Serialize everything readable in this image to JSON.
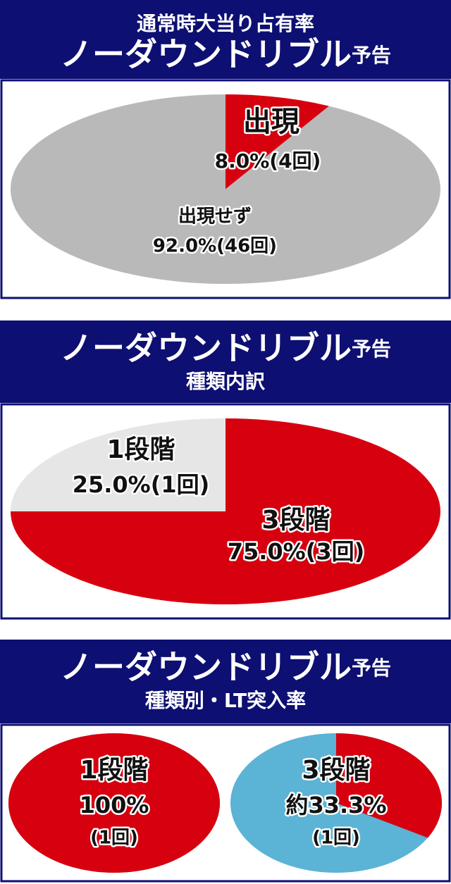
{
  "chart_data": [
    {
      "type": "pie",
      "subtitle": "通常時大当り占有率",
      "title": "ノーダウンドリブル",
      "title_suffix": "予告",
      "categories": [
        "出現",
        "出現せず"
      ],
      "values": [
        8.0,
        92.0
      ],
      "value_labels": [
        "8.0%(4回)",
        "92.0%(46回)"
      ],
      "colors": [
        "#d7000f",
        "#b9b9b9"
      ]
    },
    {
      "type": "pie",
      "title": "ノーダウンドリブル",
      "title_suffix": "予告",
      "subtitle": "種類内訳",
      "categories": [
        "3段階",
        "1段階"
      ],
      "values": [
        75.0,
        25.0
      ],
      "value_labels": [
        "75.0%(3回)",
        "25.0%(1回)"
      ],
      "colors": [
        "#d7000f",
        "#e6e6e6"
      ]
    },
    {
      "type": "rate_pies",
      "title": "ノーダウンドリブル",
      "title_suffix": "予告",
      "subtitle": "種類別・LT突入率",
      "categories": [
        "1段階",
        "3段階"
      ],
      "values": [
        100,
        33.3
      ],
      "value_labels": [
        "100%",
        "約33.3%"
      ],
      "count_labels": [
        "(1回)",
        "(1回)"
      ],
      "color": "#d7000f",
      "rest_color": "#5bb3d5"
    }
  ]
}
